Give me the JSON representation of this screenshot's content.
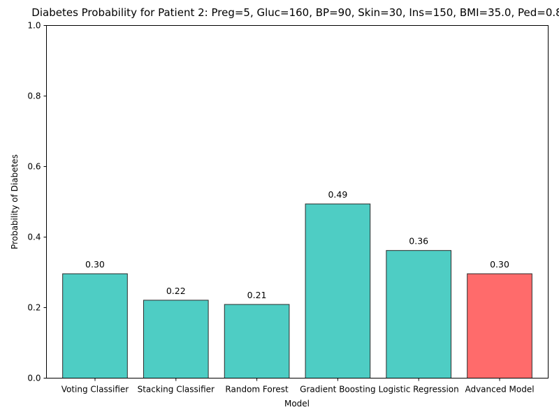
{
  "chart_data": {
    "type": "bar",
    "title": "Diabetes Probability for Patient 2: Preg=5, Gluc=160, BP=90, Skin=30, Ins=150, BMI=35.0, Ped=0.8",
    "xlabel": "Model",
    "ylabel": "Probability of Diabetes",
    "categories": [
      "Voting Classifier",
      "Stacking Classifier",
      "Random Forest",
      "Gradient Boosting",
      "Logistic Regression",
      "Advanced Model"
    ],
    "values": [
      0.296,
      0.221,
      0.209,
      0.494,
      0.362,
      0.296
    ],
    "value_labels": [
      "0.30",
      "0.22",
      "0.21",
      "0.49",
      "0.36",
      "0.30"
    ],
    "ylim": [
      0,
      1.0
    ],
    "yticks": [
      0.0,
      0.2,
      0.4,
      0.6,
      0.8,
      1.0
    ],
    "ytick_labels": [
      "0.0",
      "0.2",
      "0.4",
      "0.6",
      "0.8",
      "1.0"
    ],
    "bar_colors": [
      "#4ecdc4",
      "#4ecdc4",
      "#4ecdc4",
      "#4ecdc4",
      "#4ecdc4",
      "#ff6b6b"
    ],
    "grid": false,
    "legend": "none"
  }
}
